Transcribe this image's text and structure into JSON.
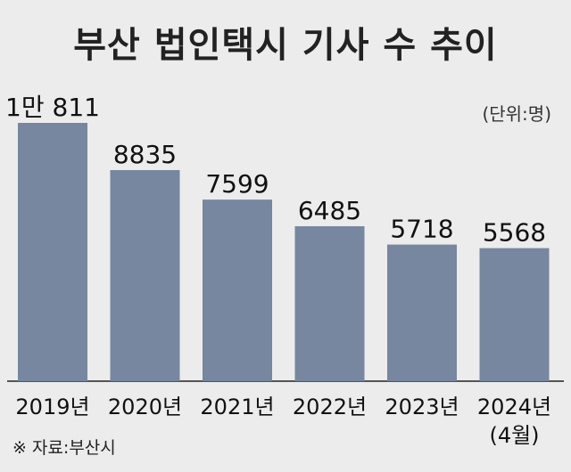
{
  "title": "부산 법인택시 기사 수 추이",
  "unit_label": "(단위:명)",
  "source": "※ 자료:부산시",
  "colors": {
    "bar": "#76879f",
    "background": "#ececec"
  },
  "chart_data": {
    "type": "bar",
    "title": "부산 법인택시 기사 수 추이",
    "categories": [
      "2019년",
      "2020년",
      "2021년",
      "2022년",
      "2023년",
      "2024년"
    ],
    "category_notes": [
      "",
      "",
      "",
      "",
      "",
      "(4월)"
    ],
    "values": [
      10811,
      8835,
      7599,
      6485,
      5718,
      5568
    ],
    "value_labels": [
      "1만 811",
      "8835",
      "7599",
      "6485",
      "5718",
      "5568"
    ],
    "xlabel": "",
    "ylabel": "",
    "ylim": [
      0,
      11500
    ],
    "grid": false,
    "legend": "none"
  }
}
